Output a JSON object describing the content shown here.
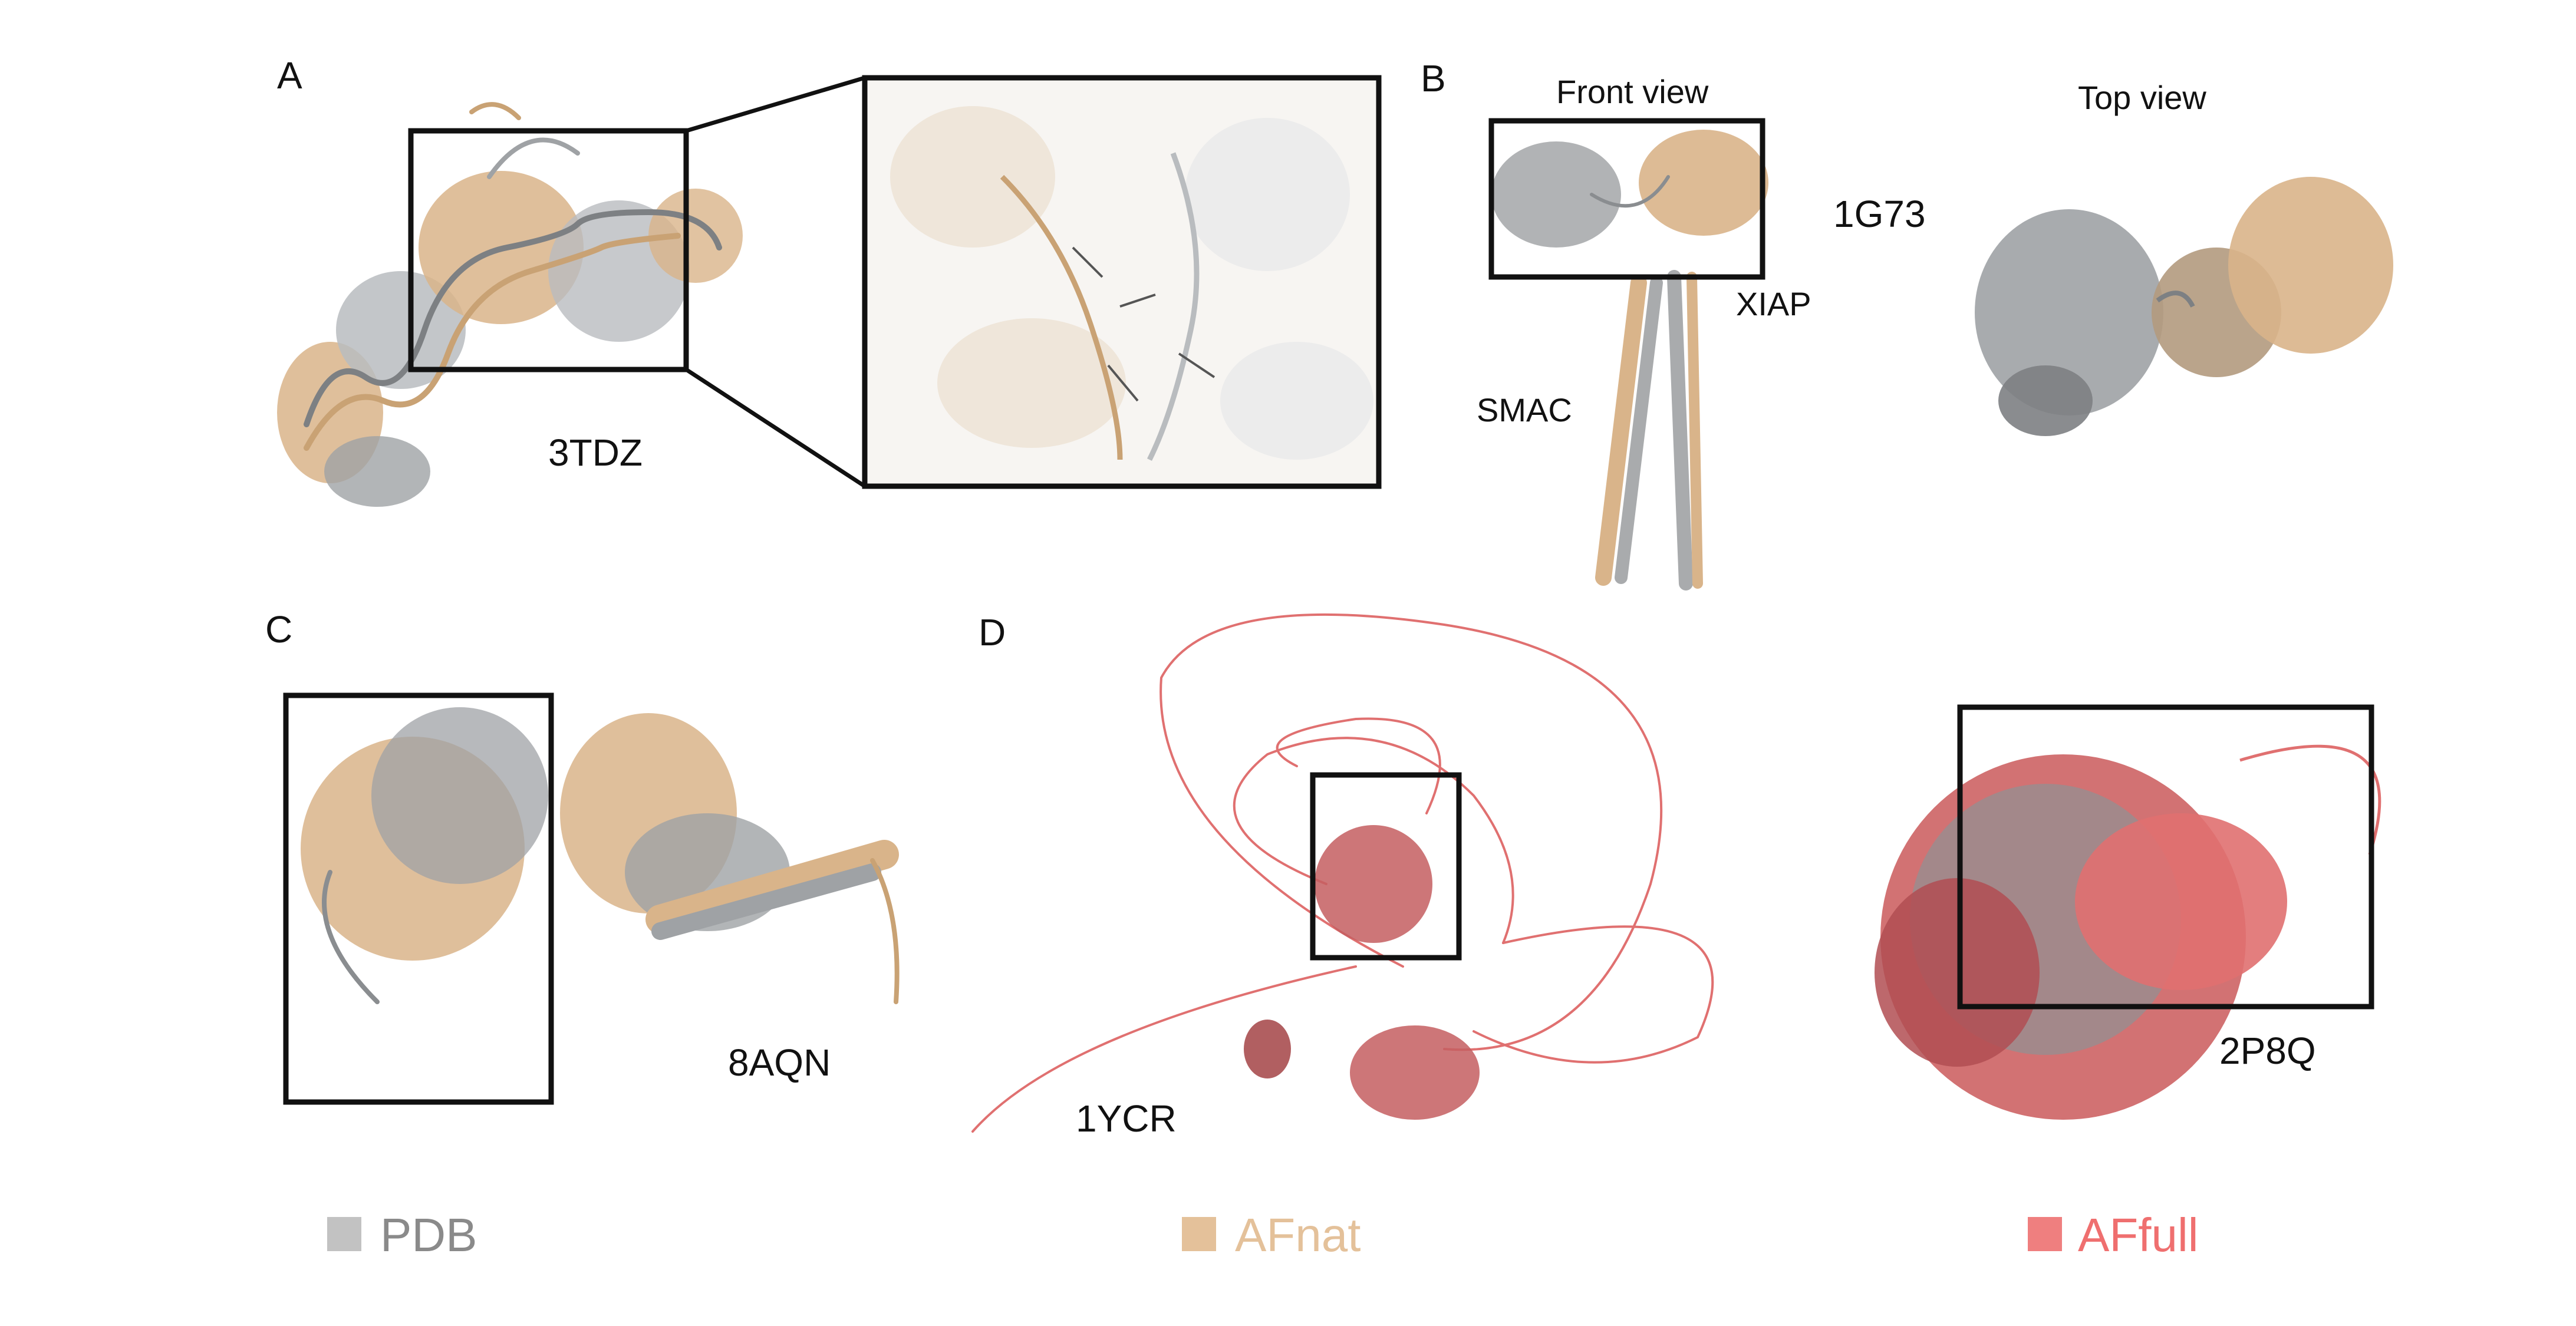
{
  "panels": {
    "A": {
      "letter": "A",
      "pdb_id": "3TDZ"
    },
    "B": {
      "letter": "B",
      "pdb_id": "1G73",
      "front_view": "Front view",
      "top_view": "Top view",
      "protein_1": "XIAP",
      "protein_2": "SMAC"
    },
    "C": {
      "letter": "C",
      "pdb_id": "8AQN"
    },
    "D": {
      "letter": "D",
      "pdb_id_1": "1YCR",
      "pdb_id_2": "2P8Q"
    }
  },
  "legend": [
    {
      "label": "PDB",
      "color": "#c2c2c2",
      "text_color": "#8a8a8a"
    },
    {
      "label": "AFnat",
      "color": "#e4c19a",
      "text_color": "#e4c19a"
    },
    {
      "label": "AFfull",
      "color": "#ef7f7f",
      "text_color": "#ef6f6f"
    }
  ],
  "colors": {
    "pdb_structure": "#a9abad",
    "afnat_structure": "#d9b48a",
    "affull_structure": "#e07070"
  }
}
